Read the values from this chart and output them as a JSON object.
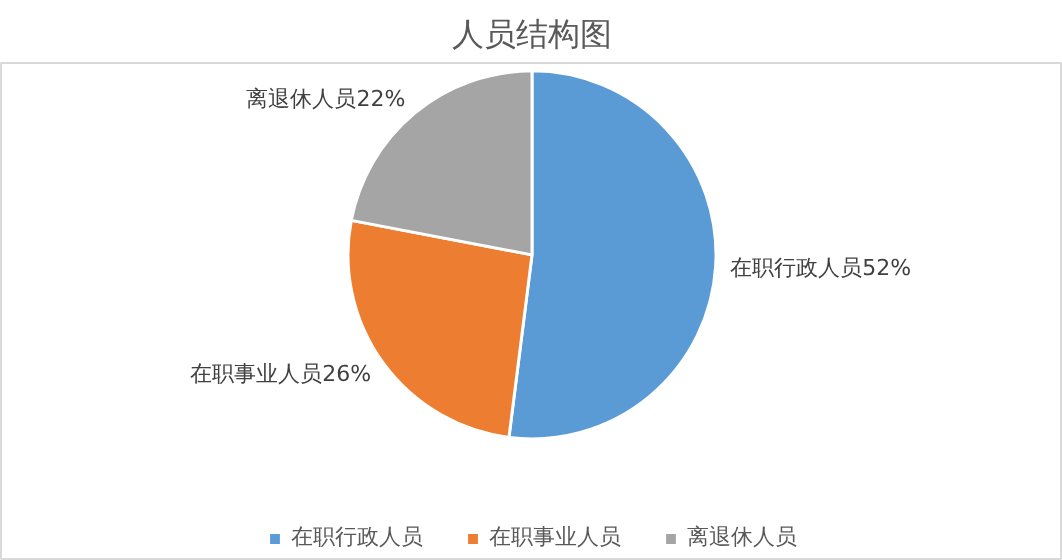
{
  "chart_data": {
    "type": "pie",
    "title": "人员结构图",
    "categories": [
      "在职行政人员",
      "在职事业人员",
      "离退休人员"
    ],
    "values": [
      52,
      26,
      22
    ],
    "colors": [
      "#5b9bd5",
      "#ed7d31",
      "#a5a5a5"
    ],
    "value_labels": [
      "在职行政人员52%",
      "在职事业人员26%",
      "离退休人员22%"
    ],
    "legend": "bottom"
  }
}
